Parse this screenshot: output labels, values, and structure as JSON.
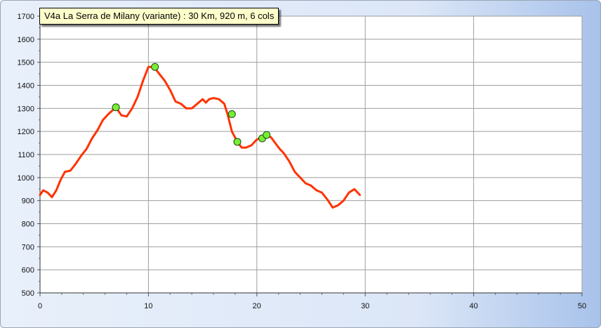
{
  "chart_data": {
    "type": "line",
    "title": "V4a La Serra de Milany (variante) : 30 Km, 920  m, 6  cols",
    "xlabel": "",
    "ylabel": "",
    "xlim": [
      0,
      50
    ],
    "ylim": [
      500,
      1700
    ],
    "x_ticks": [
      0,
      10,
      20,
      30,
      40,
      50
    ],
    "y_ticks": [
      500,
      600,
      700,
      800,
      900,
      1000,
      1100,
      1200,
      1300,
      1400,
      1500,
      1600,
      1700
    ],
    "grid": true,
    "line_color": "#ff3300",
    "marker_color": "#77ee33",
    "series": [
      {
        "x": [
          0,
          0.3,
          0.7,
          1.1,
          1.5,
          1.9,
          2.3,
          2.8,
          3.3,
          3.8,
          4.3,
          4.8,
          5.3,
          5.8,
          6.3,
          7.0,
          7.5,
          8.0,
          8.5,
          9.0,
          9.5,
          10.0,
          10.5,
          11.0,
          11.5,
          12.0,
          12.5,
          13.0,
          13.5,
          14.0,
          14.5,
          15.0,
          15.3,
          15.6,
          16.0,
          16.5,
          17.0,
          17.3,
          17.7,
          18.2,
          18.6,
          19.0,
          19.5,
          20.0,
          20.5,
          20.9,
          21.3,
          21.7,
          22.1,
          22.5,
          23.0,
          23.5,
          24.0,
          24.5,
          25.0,
          25.5,
          26.0,
          26.5,
          27.0,
          27.5,
          28.0,
          28.5,
          29.0,
          29.5
        ],
        "y": [
          925,
          945,
          935,
          915,
          945,
          990,
          1025,
          1030,
          1060,
          1095,
          1125,
          1170,
          1205,
          1250,
          1275,
          1305,
          1270,
          1265,
          1300,
          1350,
          1420,
          1480,
          1480,
          1450,
          1420,
          1380,
          1330,
          1320,
          1300,
          1300,
          1320,
          1340,
          1325,
          1340,
          1345,
          1340,
          1320,
          1275,
          1200,
          1155,
          1130,
          1130,
          1140,
          1165,
          1175,
          1185,
          1175,
          1150,
          1125,
          1105,
          1070,
          1025,
          1000,
          975,
          965,
          945,
          935,
          905,
          870,
          880,
          900,
          935,
          950,
          925
        ]
      }
    ],
    "markers": [
      {
        "x": 7.0,
        "y": 1305
      },
      {
        "x": 10.6,
        "y": 1480
      },
      {
        "x": 17.7,
        "y": 1275
      },
      {
        "x": 18.2,
        "y": 1155
      },
      {
        "x": 20.5,
        "y": 1170
      },
      {
        "x": 20.9,
        "y": 1185
      }
    ]
  }
}
